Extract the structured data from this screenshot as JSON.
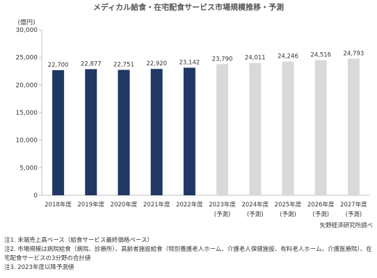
{
  "chart_data": {
    "type": "bar",
    "title": "メディカル給食・在宅配食サービス市場規模推移・予測",
    "unit_label": "(億円)",
    "categories": [
      "2018年度",
      "2019年度",
      "2020年度",
      "2021年度",
      "2022年度",
      "2023年度",
      "2024年度",
      "2025年度",
      "2026年度",
      "2027年度"
    ],
    "forecast_labels": [
      "",
      "",
      "",
      "",
      "",
      "(予測)",
      "(予測)",
      "(予測)",
      "(予測)",
      "(予測)"
    ],
    "values": [
      22700,
      22877,
      22751,
      22920,
      23142,
      23790,
      24011,
      24246,
      24516,
      24793
    ],
    "value_labels": [
      "22,700",
      "22,877",
      "22,751",
      "22,920",
      "23,142",
      "23,790",
      "24,011",
      "24,246",
      "24,516",
      "24,793"
    ],
    "ylim": [
      0,
      30000
    ],
    "yticks": [
      0,
      5000,
      10000,
      15000,
      20000,
      25000,
      30000
    ],
    "ytick_labels": [
      "0",
      "5,000",
      "10,000",
      "15,000",
      "20,000",
      "25,000",
      "30,000"
    ],
    "colors": {
      "actual": "#1f3864",
      "forecast": "#d9d9d9"
    },
    "forecast_start_index": 5,
    "grid": false
  },
  "source": "矢野経済研究所調べ",
  "notes": [
    "注1. 末端売上高ベース（給食サービス最終価格ベース）",
    "注2. 市場規模は病院給食（病院、診療所）、高齢者施設給食（特別養護老人ホーム、介護老人保健施設、有料老人ホーム、介護医療院）、在宅配食サービスの3分野の合計値",
    "注3. 2023年度以降予測値"
  ]
}
